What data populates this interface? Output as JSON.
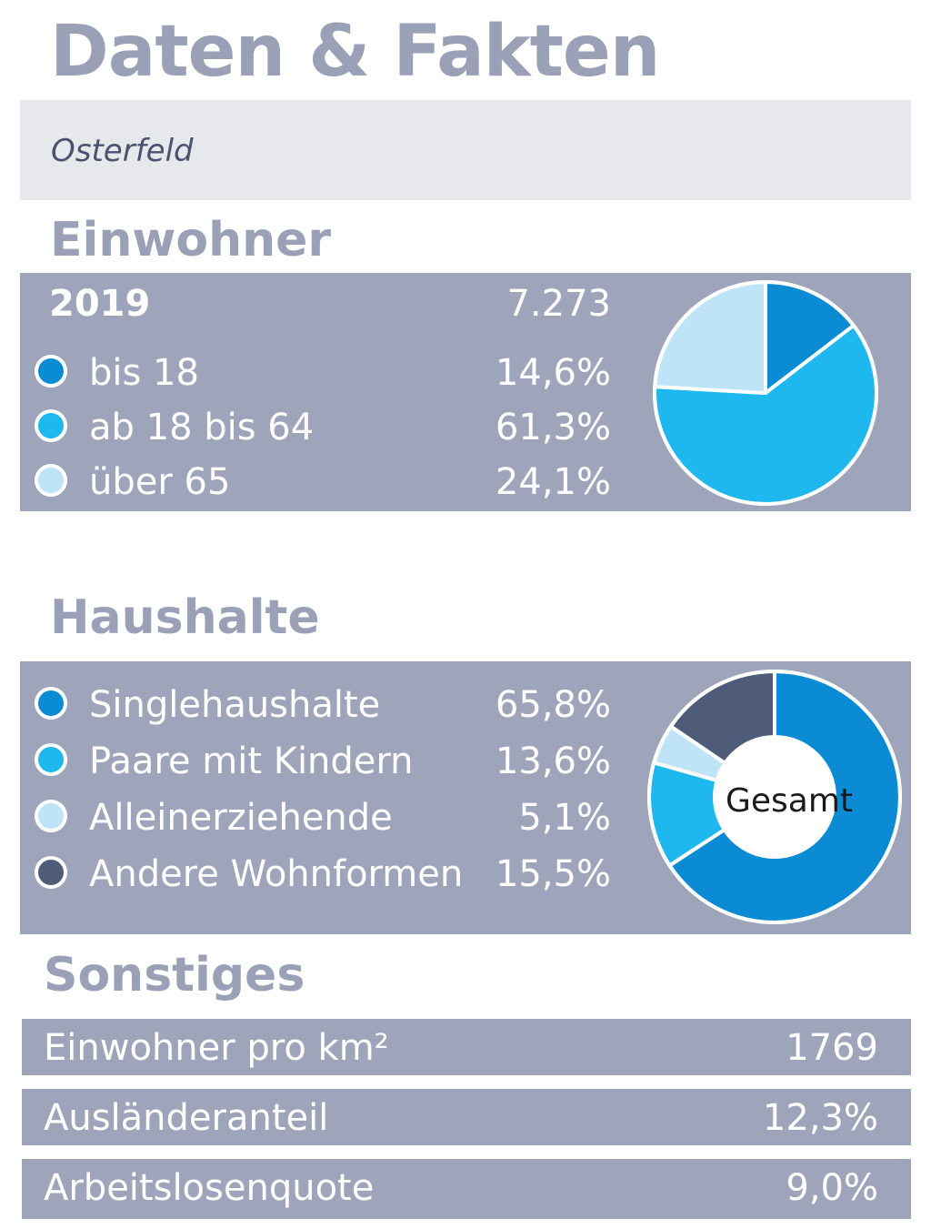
{
  "header": {
    "title": "Daten & Fakten",
    "location": "Osterfeld"
  },
  "einwohner": {
    "heading": "Einwohner",
    "year": "2019",
    "total": "7.273",
    "rows": [
      {
        "label": "bis 18",
        "value": "14,6%",
        "color": "#0a8bd3"
      },
      {
        "label": "ab 18 bis 64",
        "value": "61,3%",
        "color": "#1fb8ee"
      },
      {
        "label": "über 65",
        "value": "24,1%",
        "color": "#bfe3f7"
      }
    ]
  },
  "haushalte": {
    "heading": "Haushalte",
    "center_label": "Gesamt",
    "rows": [
      {
        "label": "Singlehaushalte",
        "value": "65,8%",
        "color": "#0a8bd3"
      },
      {
        "label": "Paare mit Kindern",
        "value": "13,6%",
        "color": "#1fb8ee"
      },
      {
        "label": "Alleinerziehende",
        "value": "5,1%",
        "color": "#bfe3f7"
      },
      {
        "label": "Andere Wohnformen",
        "value": "15,5%",
        "color": "#4e5b79"
      }
    ]
  },
  "sonstiges": {
    "heading": "Sonstiges",
    "rows": [
      {
        "label": "Einwohner pro km²",
        "value": "1769"
      },
      {
        "label": "Ausländeranteil",
        "value": "12,3%"
      },
      {
        "label": "Arbeitslosenquote",
        "value": "9,0%"
      }
    ]
  },
  "chart_data": [
    {
      "type": "pie",
      "categories": [
        "bis 18",
        "ab 18 bis 64",
        "über 65"
      ],
      "values": [
        14.6,
        61.3,
        24.1
      ],
      "colors": [
        "#0a8bd3",
        "#1fb8ee",
        "#bfe3f7"
      ]
    },
    {
      "type": "pie",
      "categories": [
        "Singlehaushalte",
        "Paare mit Kindern",
        "Alleinerziehende",
        "Andere Wohnformen"
      ],
      "values": [
        65.8,
        13.6,
        5.1,
        15.5
      ],
      "colors": [
        "#0a8bd3",
        "#1fb8ee",
        "#bfe3f7",
        "#4e5b79"
      ]
    }
  ]
}
